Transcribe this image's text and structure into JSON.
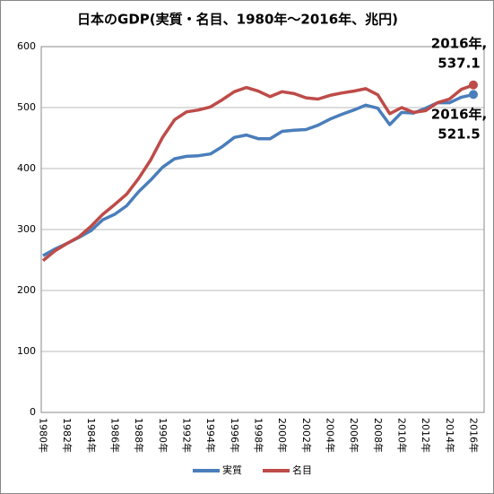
{
  "chart_data": {
    "type": "line",
    "title": "日本のGDP(実質・名目、1980年～2016年、兆円)",
    "categories": [
      "1980年",
      null,
      "1982年",
      null,
      "1984年",
      null,
      "1986年",
      null,
      "1988年",
      null,
      "1990年",
      null,
      "1992年",
      null,
      "1994年",
      null,
      "1996年",
      null,
      "1998年",
      null,
      "2000年",
      null,
      "2002年",
      null,
      "2004年",
      null,
      "2006年",
      null,
      "2008年",
      null,
      "2010年",
      null,
      "2012年",
      null,
      "2014年",
      null,
      "2016年"
    ],
    "series": [
      {
        "name": "実質",
        "color": "#4a7ebb",
        "values": [
          257,
          268,
          277,
          287,
          298,
          316,
          325,
          339,
          362,
          381,
          402,
          416,
          420,
          421,
          424,
          436,
          451,
          455,
          449,
          449,
          461,
          463,
          464,
          471,
          481,
          489,
          496,
          504,
          499,
          472,
          492,
          491,
          499,
          508,
          508,
          517,
          521.5
        ]
      },
      {
        "name": "名目",
        "color": "#be4b48",
        "values": [
          249,
          265,
          277,
          288,
          305,
          325,
          341,
          358,
          384,
          414,
          451,
          480,
          493,
          496,
          501,
          513,
          526,
          533,
          527,
          518,
          526,
          523,
          516,
          514,
          520,
          524,
          527,
          531,
          521,
          490,
          500,
          492,
          495,
          508,
          514,
          530,
          537.1
        ]
      }
    ],
    "annotations": [
      [
        "2016年,",
        "537.1"
      ],
      [
        "2016年,",
        "521.5"
      ]
    ],
    "ylim": [
      0,
      600
    ],
    "yticks": [
      0,
      100,
      200,
      300,
      400,
      500,
      600
    ],
    "grid": true,
    "legend": "bottom"
  }
}
